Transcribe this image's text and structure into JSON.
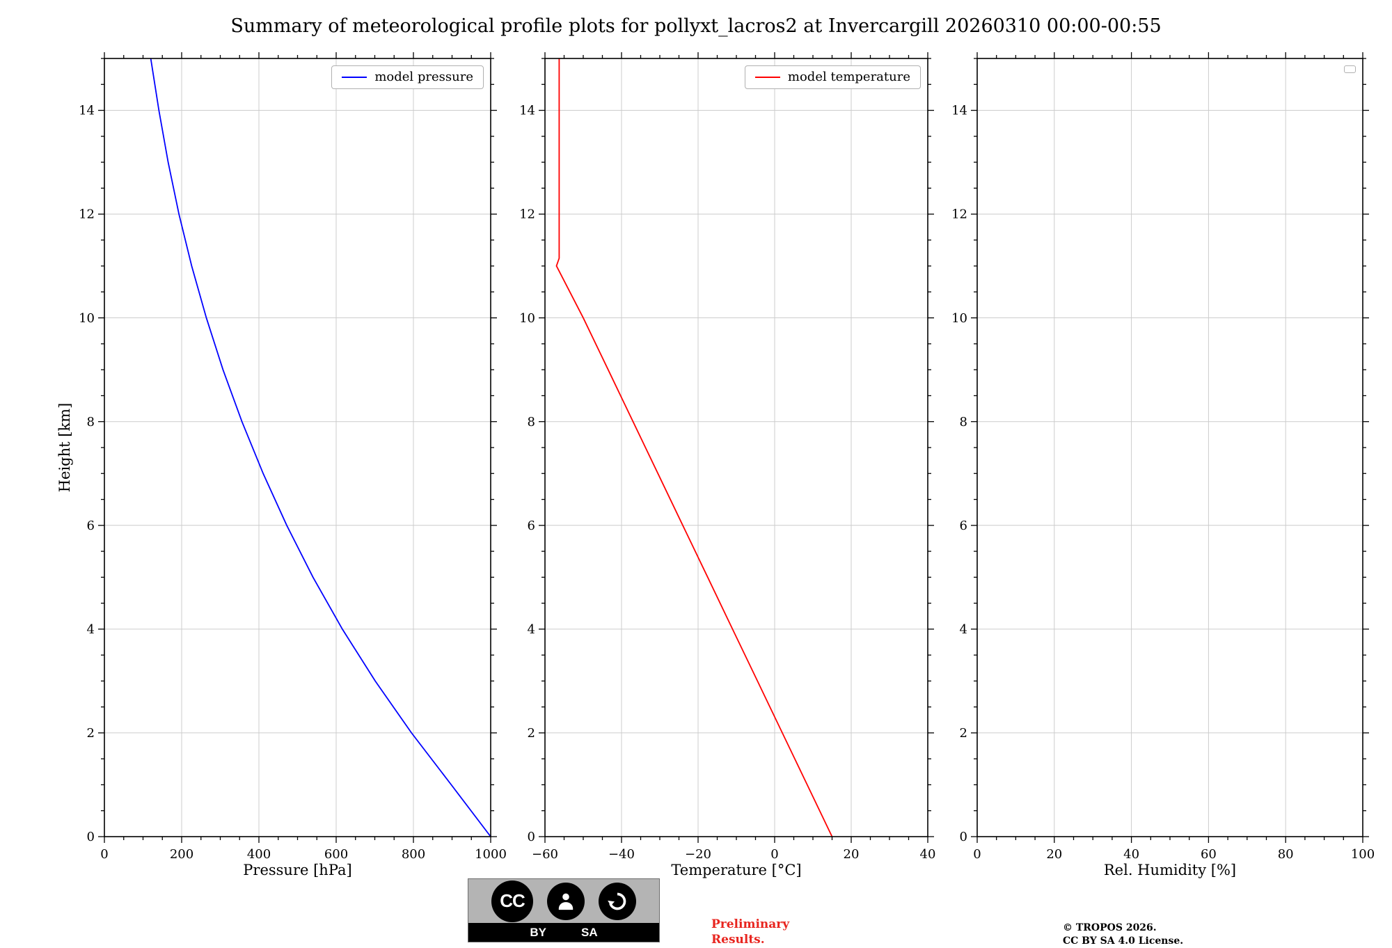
{
  "title": "Summary of meteorological profile plots for pollyxt_lacros2 at Invercargill 20260310 00:00-00:55",
  "ylabel": "Height [km]",
  "colors": {
    "pressure_line": "#0000ff",
    "temperature_line": "#ff0000",
    "grid": "#cccccc",
    "spine": "#000000",
    "preliminary_text": "#e8251f"
  },
  "footer": {
    "badge": {
      "cc": "CC",
      "by": "BY",
      "sa": "SA"
    },
    "preliminary_line1": "Preliminary",
    "preliminary_line2": "Results.",
    "credit_line1": "© TROPOS 2026.",
    "credit_line2": "CC BY SA 4.0 License."
  },
  "chart_data": [
    {
      "type": "line",
      "title": "",
      "xlabel": "Pressure [hPa]",
      "ylabel": "Height [km]",
      "xlim": [
        0,
        1000
      ],
      "ylim": [
        0,
        15
      ],
      "xticks": [
        0,
        200,
        400,
        600,
        800,
        1000
      ],
      "xtick_labels": [
        "0",
        "200",
        "400",
        "600",
        "800",
        "1000"
      ],
      "yticks": [
        0,
        2,
        4,
        6,
        8,
        10,
        12,
        14
      ],
      "x_minor_step": 50,
      "y_minor_step": 0.5,
      "grid": true,
      "legend_position": "upper right",
      "series": [
        {
          "name": "model pressure",
          "color": "#0000ff",
          "points": [
            [
              1000,
              0
            ],
            [
              898,
              1
            ],
            [
              795,
              2
            ],
            [
              701,
              3
            ],
            [
              616,
              4
            ],
            [
              540,
              5
            ],
            [
              472,
              6
            ],
            [
              411,
              7
            ],
            [
              356,
              8
            ],
            [
              307,
              9
            ],
            [
              264,
              10
            ],
            [
              226,
              11
            ],
            [
              193,
              12
            ],
            [
              165,
              13
            ],
            [
              141,
              14
            ],
            [
              120,
              15
            ]
          ]
        }
      ]
    },
    {
      "type": "line",
      "title": "",
      "xlabel": "Temperature [°C]",
      "ylabel": "Height [km]",
      "xlim": [
        -60,
        40
      ],
      "ylim": [
        0,
        15
      ],
      "xticks": [
        -60,
        -40,
        -20,
        0,
        20,
        40
      ],
      "xtick_labels": [
        "−60",
        "−40",
        "−20",
        "0",
        "20",
        "40"
      ],
      "yticks": [
        0,
        2,
        4,
        6,
        8,
        10,
        12,
        14
      ],
      "x_minor_step": 5,
      "y_minor_step": 0.5,
      "grid": true,
      "legend_position": "upper right",
      "series": [
        {
          "name": "model temperature",
          "color": "#ff0000",
          "points": [
            [
              15,
              0
            ],
            [
              8.5,
              1
            ],
            [
              2,
              2
            ],
            [
              -4.5,
              3
            ],
            [
              -11,
              4
            ],
            [
              -17.5,
              5
            ],
            [
              -24,
              6
            ],
            [
              -30.5,
              7
            ],
            [
              -37,
              8
            ],
            [
              -43.5,
              9
            ],
            [
              -50,
              10
            ],
            [
              -57,
              11
            ],
            [
              -56.3,
              11.15
            ],
            [
              -56.3,
              15
            ]
          ]
        }
      ]
    },
    {
      "type": "line",
      "title": "",
      "xlabel": "Rel. Humidity [%]",
      "ylabel": "Height [km]",
      "xlim": [
        0,
        100
      ],
      "ylim": [
        0,
        15
      ],
      "xticks": [
        0,
        20,
        40,
        60,
        80,
        100
      ],
      "xtick_labels": [
        "0",
        "20",
        "40",
        "60",
        "80",
        "100"
      ],
      "yticks": [
        0,
        2,
        4,
        6,
        8,
        10,
        12,
        14
      ],
      "x_minor_step": 5,
      "y_minor_step": 0.5,
      "grid": true,
      "legend_position": "upper right",
      "series": []
    }
  ]
}
